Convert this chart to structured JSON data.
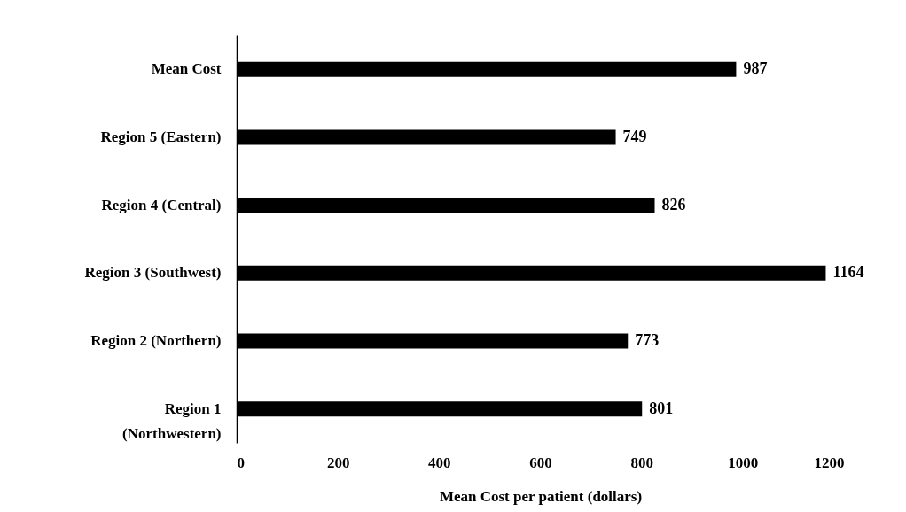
{
  "chart_data": {
    "type": "bar",
    "orientation": "horizontal",
    "categories": [
      "Mean Cost",
      "Region 5 (Eastern)",
      "Region 4 (Central)",
      "Region 3 (Southwest)",
      "Region 2 (Northern)",
      "Region 1 (Northwestern)"
    ],
    "values": [
      987,
      749,
      826,
      1164,
      773,
      801
    ],
    "color": "#000000",
    "xlabel": "Mean Cost per patient (dollars)",
    "xlim": [
      0,
      1200
    ],
    "xticks": [
      0,
      200,
      400,
      600,
      800,
      1000,
      1200
    ],
    "grid": false,
    "data_labels": true
  }
}
